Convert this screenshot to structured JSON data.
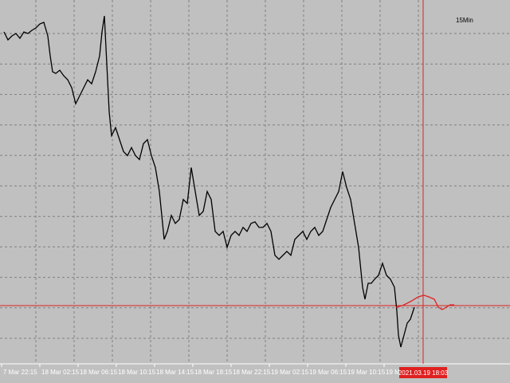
{
  "chart_data": {
    "type": "line",
    "period": "15Min",
    "xlim": [
      0,
      640
    ],
    "ylim": [
      0,
      456
    ],
    "xticks": [
      {
        "value": 2,
        "label": "7 Mar 22:15"
      },
      {
        "value": 50,
        "label": "18 Mar 02:15"
      },
      {
        "value": 98,
        "label": "18 Mar 06:15"
      },
      {
        "value": 146,
        "label": "18 Mar 10:15"
      },
      {
        "value": 194,
        "label": "18 Mar 14:15"
      },
      {
        "value": 242,
        "label": "18 Mar 18:15"
      },
      {
        "value": 290,
        "label": "18 Mar 22:15"
      },
      {
        "value": 338,
        "label": "19 Mar 02:15"
      },
      {
        "value": 386,
        "label": "19 Mar 06:15"
      },
      {
        "value": 434,
        "label": "19 Mar 10:15"
      },
      {
        "value": 482,
        "label": "19 M"
      }
    ],
    "grid": true,
    "hline": {
      "value": 73,
      "color": "#e02020"
    },
    "crosshair": {
      "x": 531,
      "label": "2021.03.19 18:03",
      "color": "#e02020"
    },
    "series": [
      {
        "color": "#000000",
        "x": [
          5,
          10,
          15,
          20,
          25,
          30,
          35,
          40,
          45,
          50,
          55,
          60,
          63,
          66,
          70,
          75,
          80,
          85,
          90,
          95,
          100,
          105,
          110,
          115,
          120,
          125,
          128,
          131,
          134,
          137,
          140,
          145,
          150,
          155,
          160,
          165,
          170,
          175,
          180,
          185,
          190,
          195,
          200,
          203,
          206,
          210,
          215,
          220,
          225,
          230,
          235,
          240,
          245,
          250,
          255,
          260,
          265,
          270,
          275,
          280,
          285,
          290,
          295,
          300,
          305,
          310,
          315,
          320,
          325,
          330,
          335,
          340,
          345,
          350,
          355,
          360,
          365,
          370,
          375,
          380,
          385,
          390,
          395,
          400,
          405,
          410,
          415,
          420,
          425,
          430,
          435,
          440,
          445,
          450,
          455,
          458,
          462,
          466,
          470,
          475,
          480,
          485,
          490,
          495,
          498,
          500,
          503,
          507,
          511,
          515,
          520
        ],
        "values": [
          416,
          406,
          411,
          414,
          408,
          416,
          414,
          418,
          421,
          426,
          428,
          411,
          386,
          366,
          364,
          368,
          361,
          356,
          346,
          326,
          336,
          346,
          356,
          351,
          366,
          386,
          416,
          436,
          376,
          316,
          286,
          296,
          281,
          266,
          261,
          271,
          261,
          256,
          276,
          281,
          261,
          246,
          216,
          186,
          156,
          166,
          186,
          176,
          181,
          206,
          201,
          246,
          216,
          186,
          191,
          216,
          206,
          166,
          161,
          166,
          146,
          161,
          166,
          161,
          171,
          166,
          176,
          178,
          171,
          171,
          176,
          166,
          136,
          131,
          136,
          141,
          136,
          156,
          161,
          166,
          156,
          166,
          171,
          161,
          166,
          181,
          196,
          206,
          216,
          241,
          221,
          206,
          176,
          146,
          96,
          81,
          101,
          101,
          106,
          111,
          126,
          111,
          106,
          96,
          66,
          36,
          21,
          36,
          51,
          56,
          71
        ]
      },
      {
        "color": "#e02020",
        "x": [
          497,
          505,
          515,
          525,
          532,
          538,
          545,
          550,
          555,
          560,
          565,
          570
        ],
        "values": [
          71,
          73,
          78,
          84,
          86,
          84,
          81,
          71,
          68,
          71,
          74,
          74
        ]
      }
    ]
  }
}
